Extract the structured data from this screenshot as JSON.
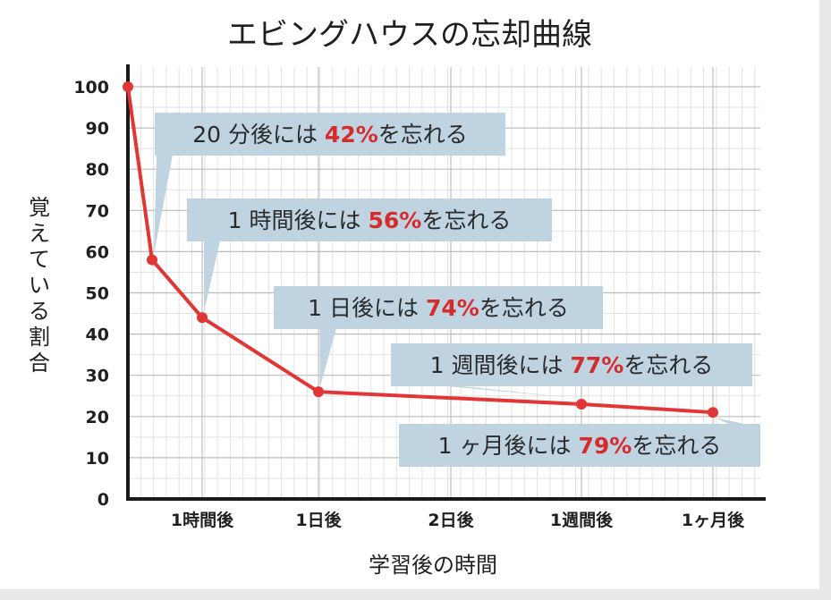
{
  "chart_data": {
    "type": "line",
    "title": "エビングハウスの忘却曲線",
    "xlabel": "学習後の時間",
    "ylabel": "覚えている割合",
    "ylim": [
      0,
      100
    ],
    "yticks": [
      "0",
      "10",
      "20",
      "30",
      "40",
      "50",
      "60",
      "70",
      "80",
      "90",
      "100"
    ],
    "xticks": [
      "1時間後",
      "1日後",
      "2日後",
      "1週間後",
      "1ヶ月後"
    ],
    "grid": true,
    "line_color": "#e23535",
    "points": [
      {
        "x": "0",
        "y": 100
      },
      {
        "x": "20分後",
        "y": 58
      },
      {
        "x": "1時間後",
        "y": 44
      },
      {
        "x": "1日後",
        "y": 26
      },
      {
        "x": "1週間後",
        "y": 23
      },
      {
        "x": "1ヶ月後",
        "y": 21
      }
    ],
    "annotations": [
      {
        "pre": "20 分後には ",
        "pct": "42%",
        "post": "を忘れる",
        "point": 1
      },
      {
        "pre": "1 時間後には ",
        "pct": "56%",
        "post": "を忘れる",
        "point": 2
      },
      {
        "pre": "1 日後には ",
        "pct": "74%",
        "post": "を忘れる",
        "point": 3
      },
      {
        "pre": "1 週間後には ",
        "pct": "77%",
        "post": "を忘れる",
        "point": 4
      },
      {
        "pre": "1 ヶ月後には ",
        "pct": "79%",
        "post": "を忘れる",
        "point": 5
      }
    ]
  }
}
